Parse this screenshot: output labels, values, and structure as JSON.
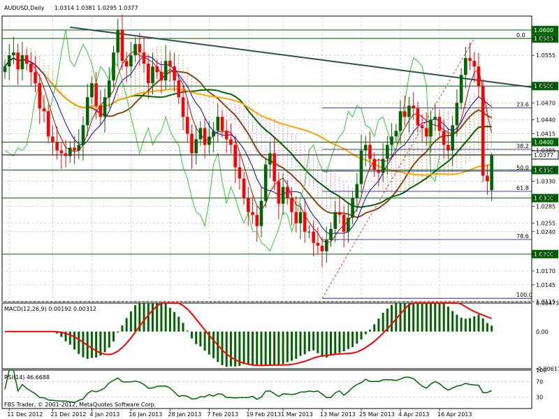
{
  "header": {
    "symbol": "AUDUSD,Daily",
    "ohlc": "1.0314 1.0381 1.0295 1.0377"
  },
  "copyright": "FBS Trader, © 2001-2012, MetaQuotes Software Corp.",
  "macd_header": "MACD(12,26,9) 0.00192 0.00312",
  "rsi_header": "RSI(14) 46.6688",
  "colors": {
    "bull": "#006400",
    "bear": "#ff0000",
    "grid": "#c0c0c0",
    "trendline": "#2f4f4f",
    "fib": "#00008b",
    "ma_green": "#006400",
    "ma_brown": "#8b4513",
    "ma_orange": "#ffa500",
    "cloud": "#cd853f",
    "macd_signal": "#ff0000",
    "rsi_line": "#006400"
  },
  "chart_data": {
    "type": "candlestick",
    "symbol": "AUDUSD",
    "timeframe": "Daily",
    "price_range": [
      1.0115,
      1.0625
    ],
    "price_ticks": [
      "1.0585",
      "1.0555",
      "1.0500",
      "1.0470",
      "1.0440",
      "1.0415",
      "1.0385",
      "1.0350",
      "1.0330",
      "1.0300",
      "1.0285",
      "1.0255",
      "1.0240",
      "1.0200",
      "1.0170",
      "1.0145",
      "1.0115"
    ],
    "price_tick_values": [
      1.0585,
      1.0555,
      1.05,
      1.047,
      1.044,
      1.0415,
      1.0385,
      1.035,
      1.033,
      1.03,
      1.0285,
      1.0255,
      1.024,
      1.02,
      1.017,
      1.0145,
      1.0115
    ],
    "date_ticks": [
      "11 Dec 2012",
      "21 Dec 2012",
      "4 Jan 2013",
      "16 Jan 2013",
      "28 Jan 2013",
      "7 Feb 2013",
      "19 Feb 2013",
      "1 Mar 2013",
      "13 Mar 2013",
      "25 Mar 2013",
      "4 Apr 2013",
      "16 Apr 2013"
    ],
    "level_boxes": [
      "1.0600",
      "1.0585",
      "1.0500",
      "1.0400",
      "1.0377",
      "1.0350",
      "1.0300",
      "1.0200"
    ],
    "level_values": [
      1.06,
      1.0585,
      1.05,
      1.04,
      1.0377,
      1.035,
      1.03,
      1.02
    ],
    "fib_labels": [
      "0.0",
      "23.6",
      "38.2",
      "50.0",
      "61.8",
      "78.6",
      "100.0"
    ],
    "fib_values": [
      1.0585,
      1.0461,
      1.0387,
      1.0348,
      1.0312,
      1.0226,
      1.0121
    ],
    "trendline": {
      "from": [
        1.0605
      ],
      "to": [
        1.0498
      ]
    },
    "close_prices": [
      1.0535,
      1.0555,
      1.056,
      1.053,
      1.0555,
      1.054,
      1.0525,
      1.0505,
      1.046,
      1.0455,
      1.041,
      1.04,
      1.0385,
      1.038,
      1.0375,
      1.039,
      1.0385,
      1.0395,
      1.043,
      1.048,
      1.0505,
      1.0465,
      1.0445,
      1.048,
      1.051,
      1.056,
      1.06,
      1.0545,
      1.0535,
      1.0555,
      1.0575,
      1.056,
      1.054,
      1.0505,
      1.0535,
      1.0525,
      1.051,
      1.0545,
      1.0535,
      1.051,
      1.048,
      1.0445,
      1.0415,
      1.038,
      1.0405,
      1.0425,
      1.0395,
      1.041,
      1.042,
      1.0445,
      1.042,
      1.0405,
      1.0395,
      1.0355,
      1.0335,
      1.03,
      1.0275,
      1.027,
      1.025,
      1.0295,
      1.036,
      1.038,
      1.033,
      1.029,
      1.032,
      1.03,
      1.0275,
      1.0255,
      1.0275,
      1.024,
      1.024,
      1.022,
      1.0215,
      1.0205,
      1.0225,
      1.0245,
      1.0275,
      1.027,
      1.024,
      1.0265,
      1.03,
      1.0325,
      1.0385,
      1.0395,
      1.037,
      1.035,
      1.0345,
      1.037,
      1.0395,
      1.041,
      1.042,
      1.0455,
      1.0445,
      1.0465,
      1.046,
      1.043,
      1.0425,
      1.041,
      1.044,
      1.0445,
      1.042,
      1.0395,
      1.0385,
      1.043,
      1.047,
      1.052,
      1.055,
      1.0545,
      1.0535,
      1.05,
      1.034,
      1.033,
      1.0377
    ],
    "open_first": 1.0525,
    "ohlc_last": {
      "open": 1.0314,
      "high": 1.0381,
      "low": 1.0295,
      "close": 1.0377
    },
    "macd": {
      "range": [
        -0.00617,
        0.00473
      ],
      "ticks": [
        "0.00473",
        "0.00",
        "-0.00617"
      ],
      "tick_values": [
        0.00473,
        0.0,
        -0.00617
      ]
    },
    "rsi": {
      "period": 14,
      "value": 46.6688,
      "ticks": [
        "100",
        "70",
        "30"
      ],
      "tick_values": [
        100,
        70,
        30
      ]
    }
  }
}
